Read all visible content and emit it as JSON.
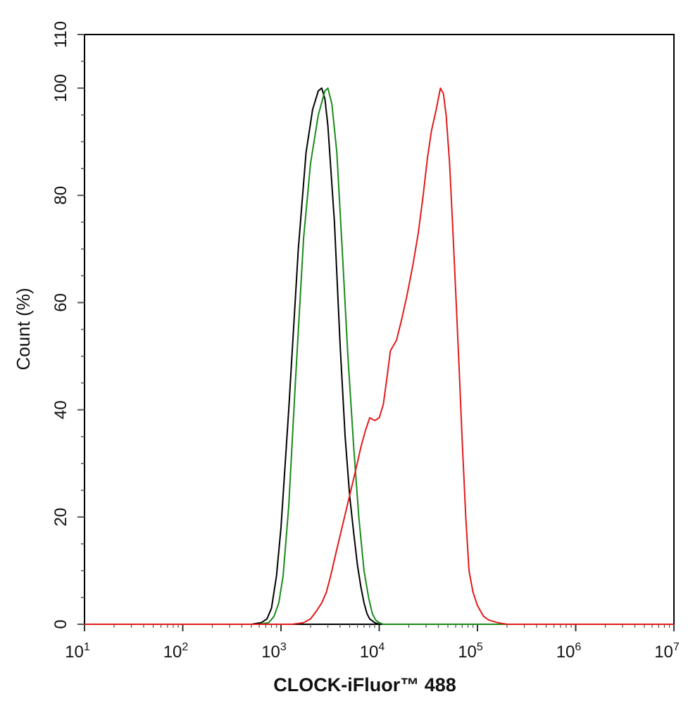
{
  "chart_data": {
    "type": "line",
    "title": "",
    "xlabel": "CLOCK-iFluor™ 488",
    "ylabel": "Count  (%)",
    "x_scale": "log",
    "xlim": [
      10,
      10000000
    ],
    "ylim": [
      0,
      110
    ],
    "x_ticks": [
      {
        "base": "10",
        "exp": "1",
        "value": 10
      },
      {
        "base": "10",
        "exp": "2",
        "value": 100
      },
      {
        "base": "10",
        "exp": "3",
        "value": 1000
      },
      {
        "base": "10",
        "exp": "4",
        "value": 10000
      },
      {
        "base": "10",
        "exp": "5",
        "value": 100000
      },
      {
        "base": "10",
        "exp": "6",
        "value": 1000000
      },
      {
        "base": "10",
        "exp": "7",
        "value": 10000000
      }
    ],
    "y_ticks": [
      "0",
      "20",
      "40",
      "60",
      "80",
      "100",
      "110"
    ],
    "y_tick_values": [
      0,
      20,
      40,
      60,
      80,
      100,
      110
    ],
    "grid": false,
    "legend": "none",
    "series": [
      {
        "color": "#000000",
        "points": [
          [
            500,
            0
          ],
          [
            630,
            0.3
          ],
          [
            720,
            1
          ],
          [
            800,
            3
          ],
          [
            900,
            9
          ],
          [
            1000,
            18
          ],
          [
            1200,
            40
          ],
          [
            1500,
            70
          ],
          [
            1800,
            88
          ],
          [
            2100,
            96
          ],
          [
            2400,
            99.5
          ],
          [
            2600,
            100
          ],
          [
            2800,
            98
          ],
          [
            3000,
            93
          ],
          [
            3500,
            75
          ],
          [
            4000,
            52
          ],
          [
            4500,
            35
          ],
          [
            5000,
            24
          ],
          [
            5500,
            17
          ],
          [
            6000,
            11
          ],
          [
            6500,
            7
          ],
          [
            7000,
            4
          ],
          [
            7500,
            2
          ],
          [
            8000,
            1
          ],
          [
            9000,
            0.3
          ],
          [
            10000,
            0
          ]
        ]
      },
      {
        "color": "#1a8a1a",
        "points": [
          [
            600,
            0
          ],
          [
            750,
            0.3
          ],
          [
            850,
            1.5
          ],
          [
            950,
            4
          ],
          [
            1050,
            9
          ],
          [
            1200,
            22
          ],
          [
            1400,
            45
          ],
          [
            1700,
            72
          ],
          [
            2000,
            86
          ],
          [
            2400,
            95
          ],
          [
            2800,
            99.5
          ],
          [
            3000,
            100
          ],
          [
            3300,
            97
          ],
          [
            3700,
            88
          ],
          [
            4200,
            70
          ],
          [
            4800,
            50
          ],
          [
            5500,
            33
          ],
          [
            6200,
            20
          ],
          [
            7000,
            10
          ],
          [
            7800,
            5
          ],
          [
            8500,
            2
          ],
          [
            9200,
            0.8
          ],
          [
            10000,
            0.3
          ],
          [
            11000,
            0
          ]
        ]
      },
      {
        "color": "#e11b1b",
        "points": [
          [
            1300,
            0
          ],
          [
            1700,
            0.3
          ],
          [
            2000,
            1
          ],
          [
            2300,
            2.5
          ],
          [
            2600,
            4
          ],
          [
            2900,
            6
          ],
          [
            3200,
            9
          ],
          [
            3700,
            14
          ],
          [
            4300,
            19
          ],
          [
            5000,
            24
          ],
          [
            5800,
            29
          ],
          [
            6500,
            33
          ],
          [
            7200,
            36
          ],
          [
            8000,
            38.5
          ],
          [
            9000,
            38
          ],
          [
            10000,
            38.5
          ],
          [
            11000,
            41
          ],
          [
            12000,
            46
          ],
          [
            13000,
            51
          ],
          [
            15000,
            53
          ],
          [
            17000,
            57
          ],
          [
            19000,
            61
          ],
          [
            22000,
            67
          ],
          [
            25000,
            73
          ],
          [
            28000,
            80
          ],
          [
            31000,
            87
          ],
          [
            34000,
            92
          ],
          [
            38000,
            96
          ],
          [
            42000,
            100
          ],
          [
            45000,
            99
          ],
          [
            48000,
            95
          ],
          [
            52000,
            86
          ],
          [
            56000,
            74
          ],
          [
            60000,
            62
          ],
          [
            65000,
            48
          ],
          [
            70000,
            34
          ],
          [
            76000,
            20
          ],
          [
            82000,
            10
          ],
          [
            90000,
            6
          ],
          [
            100000,
            3.5
          ],
          [
            115000,
            1.5
          ],
          [
            130000,
            0.8
          ],
          [
            160000,
            0.3
          ],
          [
            200000,
            0
          ]
        ]
      }
    ]
  }
}
